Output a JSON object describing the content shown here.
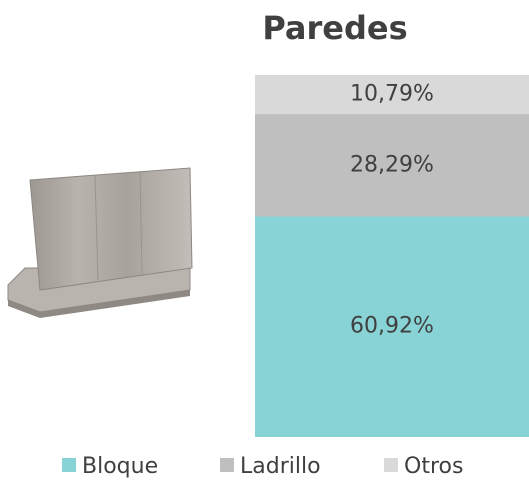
{
  "chart_data": {
    "type": "bar",
    "stacked": true,
    "title": "Paredes",
    "ylim": [
      0,
      100
    ],
    "series": [
      {
        "name": "Bloque",
        "color": "#88d3d6",
        "values": [
          60.92
        ],
        "value_labels": [
          "60,92%"
        ]
      },
      {
        "name": "Ladrillo",
        "color": "#bfbfbf",
        "values": [
          28.29
        ],
        "value_labels": [
          "28,29%"
        ]
      },
      {
        "name": "Otros",
        "color": "#d9d9d9",
        "values": [
          10.79
        ],
        "value_labels": [
          "10,79%"
        ]
      }
    ]
  }
}
